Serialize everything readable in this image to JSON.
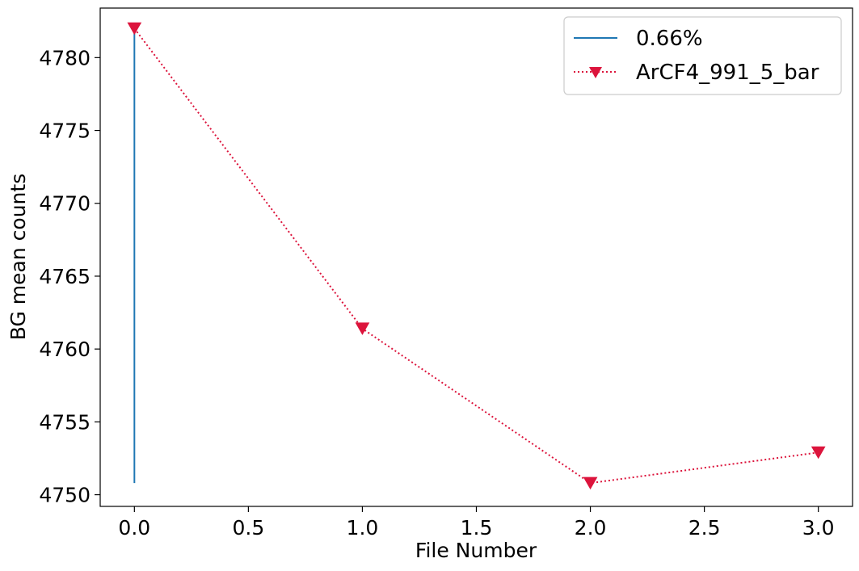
{
  "chart_data": {
    "type": "line",
    "xlabel": "File Number",
    "ylabel": "BG mean counts",
    "xlim": [
      -0.15,
      3.15
    ],
    "ylim": [
      4749.2,
      4783.4
    ],
    "xticks": [
      0.0,
      0.5,
      1.0,
      1.5,
      2.0,
      2.5,
      3.0
    ],
    "xtick_labels": [
      "0.0",
      "0.5",
      "1.0",
      "1.5",
      "2.0",
      "2.5",
      "3.0"
    ],
    "yticks": [
      4750,
      4755,
      4760,
      4765,
      4770,
      4775,
      4780
    ],
    "ytick_labels": [
      "4750",
      "4755",
      "4760",
      "4765",
      "4770",
      "4775",
      "4780"
    ],
    "grid": false,
    "legend_position": "top-right",
    "series": [
      {
        "name": "0.66%",
        "style": "vertical-line",
        "color": "#1f77b4",
        "x": [
          0.0,
          0.0
        ],
        "y": [
          4750.8,
          4782.0
        ]
      },
      {
        "name": "ArCF4_991_5_bar",
        "style": "dotted-line-triangle-down-markers",
        "color": "#dc143c",
        "x": [
          0,
          1,
          2,
          3
        ],
        "y": [
          4782.0,
          4761.4,
          4750.8,
          4752.9
        ]
      }
    ]
  }
}
